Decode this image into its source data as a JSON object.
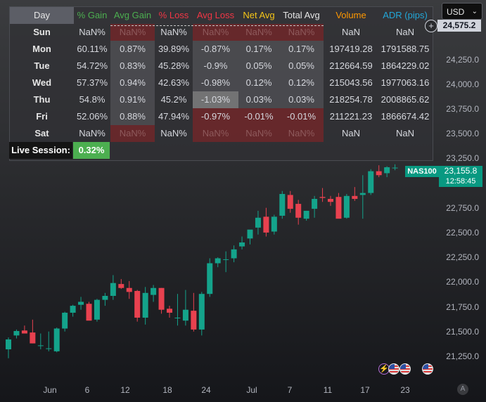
{
  "currency": {
    "label": "USD"
  },
  "price_axis": {
    "top_price": "24,575.2",
    "ticks": [
      "24,250.0",
      "24,000.0",
      "23,750.0",
      "23,500.0",
      "23,250.0",
      "22,750.0",
      "22,500.0",
      "22,250.0",
      "22,000.0",
      "21,750.0",
      "21,500.0",
      "21,250.0"
    ],
    "symbol": "NAS100",
    "last_price": "23,155.8",
    "countdown": "12:58:45"
  },
  "time_axis": {
    "ticks": [
      "Jun",
      "6",
      "12",
      "18",
      "24",
      "Jul",
      "7",
      "11",
      "17",
      "23"
    ]
  },
  "stats_table": {
    "headers": [
      {
        "text": "Day",
        "color": "#e6e6e6"
      },
      {
        "text": "% Gain",
        "color": "#4caf50"
      },
      {
        "text": "Avg Gain",
        "color": "#4caf50"
      },
      {
        "text": "% Loss",
        "color": "#f23645"
      },
      {
        "text": "Avg Loss",
        "color": "#f23645"
      },
      {
        "text": "Net Avg",
        "color": "#f5c518"
      },
      {
        "text": "Total Avg",
        "color": "#e6e6e6"
      },
      {
        "text": "Volume",
        "color": "#ff9800"
      },
      {
        "text": "ADR (pips)",
        "color": "#22a7d8"
      }
    ],
    "rows": [
      {
        "day": "Sun",
        "cells": [
          "NaN%",
          "NaN%",
          "NaN%",
          "NaN%",
          "NaN%",
          "NaN%",
          "NaN",
          "NaN"
        ]
      },
      {
        "day": "Mon",
        "cells": [
          "60.11%",
          "0.87%",
          "39.89%",
          "-0.87%",
          "0.17%",
          "0.17%",
          "197419.28",
          "1791588.75"
        ]
      },
      {
        "day": "Tue",
        "cells": [
          "54.72%",
          "0.83%",
          "45.28%",
          "-0.9%",
          "0.05%",
          "0.05%",
          "212664.59",
          "1864229.02"
        ]
      },
      {
        "day": "Wed",
        "cells": [
          "57.37%",
          "0.94%",
          "42.63%",
          "-0.98%",
          "0.12%",
          "0.12%",
          "215043.56",
          "1977063.16"
        ]
      },
      {
        "day": "Thu",
        "cells": [
          "54.8%",
          "0.91%",
          "45.2%",
          "-1.03%",
          "0.03%",
          "0.03%",
          "218254.78",
          "2008865.62"
        ]
      },
      {
        "day": "Fri",
        "cells": [
          "52.06%",
          "0.88%",
          "47.94%",
          "-0.97%",
          "-0.01%",
          "-0.01%",
          "211221.23",
          "1866674.42"
        ]
      },
      {
        "day": "Sat",
        "cells": [
          "NaN%",
          "NaN%",
          "NaN%",
          "NaN%",
          "NaN%",
          "NaN%",
          "NaN",
          "NaN"
        ]
      }
    ],
    "live_session": {
      "label": "Live Session:",
      "value": "0.32%"
    }
  },
  "colors": {
    "up": "#089981",
    "down": "#f23645",
    "up_candle": "#14a38b",
    "down_candle": "#e8414f"
  },
  "candles": [
    {
      "o": 21320,
      "h": 21440,
      "l": 21230,
      "c": 21420
    },
    {
      "o": 21460,
      "h": 21520,
      "l": 21430,
      "c": 21505
    },
    {
      "o": 21510,
      "h": 21560,
      "l": 21480,
      "c": 21480
    },
    {
      "o": 21490,
      "h": 21620,
      "l": 21380,
      "c": 21380
    },
    {
      "o": 21360,
      "h": 21480,
      "l": 21320,
      "c": 21360
    },
    {
      "o": 21330,
      "h": 21500,
      "l": 21300,
      "c": 21330
    },
    {
      "o": 21300,
      "h": 21540,
      "l": 21290,
      "c": 21530
    },
    {
      "o": 21530,
      "h": 21700,
      "l": 21500,
      "c": 21690
    },
    {
      "o": 21690,
      "h": 21770,
      "l": 21650,
      "c": 21760
    },
    {
      "o": 21770,
      "h": 21850,
      "l": 21720,
      "c": 21800
    },
    {
      "o": 21780,
      "h": 21800,
      "l": 21620,
      "c": 21610
    },
    {
      "o": 21620,
      "h": 21830,
      "l": 21600,
      "c": 21820
    },
    {
      "o": 21820,
      "h": 21890,
      "l": 21760,
      "c": 21860
    },
    {
      "o": 21860,
      "h": 22070,
      "l": 21820,
      "c": 21990
    },
    {
      "o": 21980,
      "h": 22030,
      "l": 21930,
      "c": 21940
    },
    {
      "o": 21940,
      "h": 22010,
      "l": 21830,
      "c": 21900
    },
    {
      "o": 21910,
      "h": 21920,
      "l": 21600,
      "c": 21640
    },
    {
      "o": 21640,
      "h": 21950,
      "l": 21570,
      "c": 21890
    },
    {
      "o": 21870,
      "h": 21970,
      "l": 21800,
      "c": 21940
    },
    {
      "o": 21940,
      "h": 21940,
      "l": 21680,
      "c": 21720
    },
    {
      "o": 21730,
      "h": 21760,
      "l": 21640,
      "c": 21690
    },
    {
      "o": 21640,
      "h": 21880,
      "l": 21560,
      "c": 21640
    },
    {
      "o": 21610,
      "h": 21920,
      "l": 21560,
      "c": 21720
    },
    {
      "o": 21710,
      "h": 21890,
      "l": 21500,
      "c": 21520
    },
    {
      "o": 21520,
      "h": 21900,
      "l": 21460,
      "c": 21880
    },
    {
      "o": 21880,
      "h": 22240,
      "l": 21850,
      "c": 22190
    },
    {
      "o": 22190,
      "h": 22250,
      "l": 22150,
      "c": 22240
    },
    {
      "o": 22230,
      "h": 22310,
      "l": 22100,
      "c": 22230
    },
    {
      "o": 22240,
      "h": 22370,
      "l": 22200,
      "c": 22330
    },
    {
      "o": 22360,
      "h": 22460,
      "l": 22330,
      "c": 22400
    },
    {
      "o": 22440,
      "h": 22520,
      "l": 22380,
      "c": 22530
    },
    {
      "o": 22550,
      "h": 22720,
      "l": 22480,
      "c": 22650
    },
    {
      "o": 22660,
      "h": 22750,
      "l": 22460,
      "c": 22500
    },
    {
      "o": 22510,
      "h": 22680,
      "l": 22480,
      "c": 22660
    },
    {
      "o": 22670,
      "h": 22920,
      "l": 22640,
      "c": 22890
    },
    {
      "o": 22880,
      "h": 22920,
      "l": 22700,
      "c": 22740
    },
    {
      "o": 22790,
      "h": 22830,
      "l": 22580,
      "c": 22650
    },
    {
      "o": 22640,
      "h": 22720,
      "l": 22620,
      "c": 22720
    },
    {
      "o": 22740,
      "h": 22870,
      "l": 22650,
      "c": 22840
    },
    {
      "o": 22860,
      "h": 22950,
      "l": 22810,
      "c": 22850
    },
    {
      "o": 22840,
      "h": 22870,
      "l": 22770,
      "c": 22810
    },
    {
      "o": 22860,
      "h": 22900,
      "l": 22650,
      "c": 22640
    },
    {
      "o": 22650,
      "h": 22890,
      "l": 22640,
      "c": 22870
    },
    {
      "o": 22870,
      "h": 22960,
      "l": 22820,
      "c": 22840
    },
    {
      "o": 22880,
      "h": 23080,
      "l": 22640,
      "c": 22900
    },
    {
      "o": 22900,
      "h": 23140,
      "l": 22880,
      "c": 23120
    },
    {
      "o": 23120,
      "h": 23180,
      "l": 23060,
      "c": 23080
    },
    {
      "o": 23100,
      "h": 23170,
      "l": 23060,
      "c": 23160
    },
    {
      "o": 23150,
      "h": 23190,
      "l": 23130,
      "c": 23156
    }
  ]
}
